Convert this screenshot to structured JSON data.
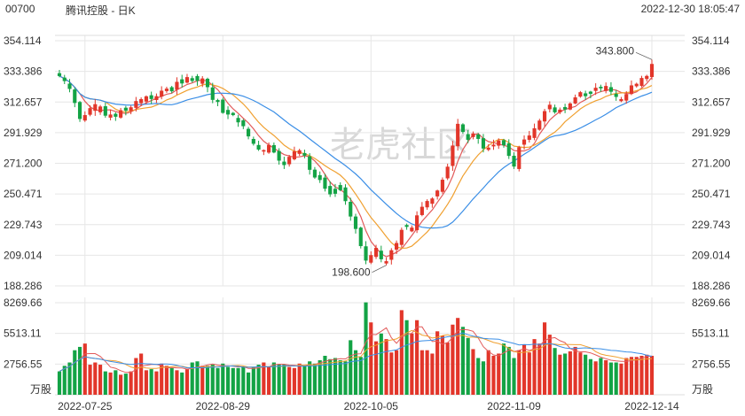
{
  "header": {
    "code": "00700",
    "name": "腾讯控股 - 日K",
    "datetime": "2022-12-30 18:05:47"
  },
  "watermark": "老虎社区",
  "colors": {
    "up": "#e2362a",
    "down": "#13a345",
    "ma1": "#e25a5a",
    "ma2": "#f0a030",
    "ma3": "#3a8ee6",
    "grid": "#e6e6e6"
  },
  "chart_data": [
    {
      "type": "candlestick",
      "title": "",
      "y_ticks": [
        "354.114",
        "333.386",
        "312.657",
        "291.929",
        "271.200",
        "250.471",
        "229.743",
        "209.014",
        "188.286"
      ],
      "ylim": [
        188.286,
        354.114
      ],
      "x_ticks": [
        "2022-07-25",
        "2022-08-29",
        "2022-10-05",
        "2022-11-09",
        "2022-12-14"
      ],
      "grid": true,
      "annotations": [
        {
          "label": "343.800",
          "type": "max"
        },
        {
          "label": "198.600",
          "type": "min"
        }
      ],
      "closes": [
        330.2,
        326.8,
        321.5,
        312.0,
        301.2,
        303.8,
        308.5,
        311.2,
        309.6,
        303.4,
        304.2,
        302.7,
        307.1,
        306.8,
        309.1,
        313.3,
        314.6,
        316.5,
        314.7,
        316.6,
        320.3,
        321.7,
        319.9,
        326.3,
        325.2,
        329.5,
        326.9,
        327.0,
        328.6,
        322.7,
        314.1,
        312.7,
        305.3,
        304.2,
        303.8,
        298.9,
        296.3,
        289.4,
        284.4,
        280.5,
        280.1,
        283.6,
        278.5,
        273.0,
        270.0,
        275.6,
        279.3,
        280.0,
        276.4,
        266.8,
        261.6,
        259.9,
        254.0,
        250.2,
        250.6,
        253.0,
        245.6,
        235.2,
        226.8,
        215.2,
        205.4,
        209.1,
        214.0,
        206.3,
        205.0,
        212.4,
        217.3,
        226.2,
        228.2,
        227.7,
        236.0,
        241.8,
        245.7,
        247.4,
        252.8,
        260.1,
        268.9,
        283.2,
        297.9,
        292.4,
        287.1,
        291.4,
        287.7,
        281.2,
        281.8,
        283.8,
        286.6,
        283.4,
        276.2,
        269.0,
        282.1,
        287.3,
        290.0,
        294.9,
        300.1,
        306.5,
        310.8,
        305.7,
        307.5,
        307.6,
        311.7,
        315.8,
        319.3,
        316.6,
        318.2,
        322.3,
        321.9,
        323.5,
        319.6,
        316.1,
        314.6,
        318.0,
        323.9,
        325.0,
        328.9,
        330.3,
        338.4
      ],
      "volume": {
        "y_ticks": [
          "8269.66",
          "5513.11",
          "2756.55"
        ],
        "unit_label": "万股",
        "ylim": [
          0,
          8269.66
        ],
        "values": [
          2100,
          2600,
          2900,
          4000,
          4300,
          4600,
          2700,
          2900,
          2700,
          2100,
          2000,
          2200,
          1800,
          1900,
          2100,
          3300,
          3700,
          2200,
          2300,
          2100,
          2800,
          2600,
          2400,
          2200,
          2000,
          2300,
          2900,
          3000,
          2600,
          2600,
          2700,
          2400,
          2800,
          2500,
          2400,
          2400,
          2500,
          2000,
          2500,
          2700,
          2900,
          2500,
          2900,
          2700,
          2700,
          2500,
          2400,
          2800,
          2600,
          3000,
          2800,
          3100,
          3500,
          3200,
          3300,
          3100,
          3000,
          4900,
          4000,
          3400,
          8300,
          6500,
          4800,
          5500,
          5000,
          3800,
          4000,
          7600,
          6700,
          5500,
          6700,
          4000,
          4000,
          3700,
          5700,
          5300,
          4700,
          6300,
          6900,
          6100,
          5100,
          4100,
          3300,
          3000,
          4000,
          3500,
          3700,
          4600,
          4300,
          3300,
          4000,
          4500,
          3800,
          5000,
          4600,
          6500,
          5400,
          4200,
          3600,
          3700,
          3900,
          4300,
          3800,
          3600,
          3200,
          3000,
          3300,
          3100,
          2900,
          2900,
          2800,
          3300,
          3400,
          3400,
          3500,
          3600,
          3500
        ]
      }
    }
  ]
}
